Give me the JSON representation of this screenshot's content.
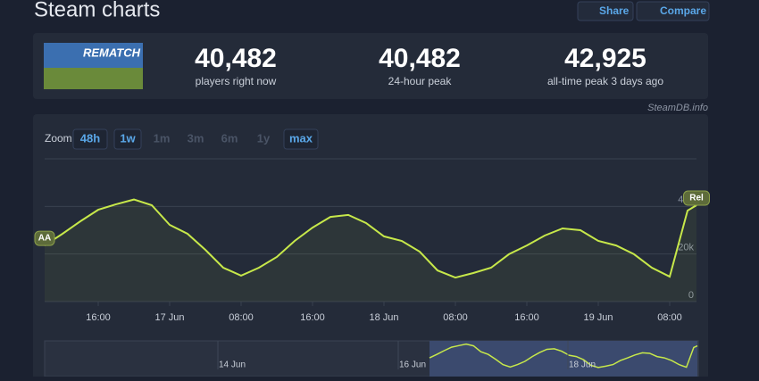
{
  "header": {
    "title": "Steam charts",
    "buttons": [
      "Share",
      "Compare"
    ]
  },
  "stats": {
    "game_logo": "REMATCH",
    "items": [
      {
        "value": "40,482",
        "label": "players right now"
      },
      {
        "value": "40,482",
        "label": "24-hour peak"
      },
      {
        "value": "42,925",
        "label": "all-time peak 3 days ago"
      }
    ]
  },
  "credit": "SteamDB.info",
  "zoom": {
    "label": "Zoom",
    "options": [
      {
        "label": "48h",
        "active": true
      },
      {
        "label": "1w",
        "active": true
      },
      {
        "label": "1m",
        "active": false
      },
      {
        "label": "3m",
        "active": false
      },
      {
        "label": "6m",
        "active": false
      },
      {
        "label": "1y",
        "active": false
      },
      {
        "label": "max",
        "active": true
      }
    ]
  },
  "chart_data": {
    "type": "line",
    "color": "#c7e84a",
    "grid": true,
    "x": [
      "16 Jun 10:00",
      "16 Jun 12:00",
      "16 Jun 14:00",
      "16 Jun 16:00",
      "16 Jun 18:00",
      "16 Jun 20:00",
      "16 Jun 22:00",
      "17 Jun 00:00",
      "17 Jun 02:00",
      "17 Jun 04:00",
      "17 Jun 06:00",
      "17 Jun 08:00",
      "17 Jun 10:00",
      "17 Jun 12:00",
      "17 Jun 14:00",
      "17 Jun 16:00",
      "17 Jun 18:00",
      "17 Jun 20:00",
      "17 Jun 22:00",
      "18 Jun 00:00",
      "18 Jun 02:00",
      "18 Jun 04:00",
      "18 Jun 06:00",
      "18 Jun 08:00",
      "18 Jun 10:00",
      "18 Jun 12:00",
      "18 Jun 14:00",
      "18 Jun 16:00",
      "18 Jun 18:00",
      "18 Jun 20:00",
      "18 Jun 22:00",
      "19 Jun 00:00",
      "19 Jun 02:00",
      "19 Jun 04:00",
      "19 Jun 06:00",
      "19 Jun 08:00",
      "19 Jun 10:00",
      "19 Jun 11:00"
    ],
    "series": [
      {
        "values": [
          23600,
          28500,
          33750,
          38600,
          40900,
          42900,
          40500,
          32250,
          28500,
          21750,
          14250,
          10900,
          14250,
          18750,
          25500,
          31100,
          35600,
          36400,
          33000,
          27400,
          25500,
          21000,
          13100,
          10100,
          12000,
          14250,
          19900,
          23600,
          27750,
          30750,
          30000,
          25500,
          23600,
          19900,
          14250,
          10500,
          38250,
          40482
        ]
      }
    ],
    "xlim": [
      "16 Jun 10:00",
      "19 Jun 11:00"
    ],
    "xticks": [
      {
        "value": "16 Jun 16:00",
        "label": "16:00"
      },
      {
        "value": "17 Jun 00:00",
        "label": "17 Jun"
      },
      {
        "value": "17 Jun 08:00",
        "label": "08:00"
      },
      {
        "value": "17 Jun 16:00",
        "label": "16:00"
      },
      {
        "value": "18 Jun 00:00",
        "label": "18 Jun"
      },
      {
        "value": "18 Jun 08:00",
        "label": "08:00"
      },
      {
        "value": "18 Jun 16:00",
        "label": "16:00"
      },
      {
        "value": "19 Jun 00:00",
        "label": "19 Jun"
      },
      {
        "value": "19 Jun 08:00",
        "label": "08:00"
      }
    ],
    "ylim": [
      0,
      60000
    ],
    "yticks": [
      0,
      {
        "value": 20000,
        "label": "20k"
      },
      {
        "value": 40000,
        "label": "40k"
      }
    ],
    "annotations": [
      {
        "label": "AA",
        "x": "16 Jun 10:00"
      },
      {
        "label": "Rel",
        "x": "19 Jun 11:00"
      }
    ]
  },
  "navigator": {
    "labels": [
      "14 Jun",
      "16 Jun",
      "18 Jun"
    ]
  }
}
